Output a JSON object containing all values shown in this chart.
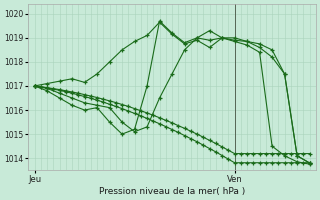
{
  "xlabel": "Pression niveau de la mer( hPa )",
  "bg_color": "#c8ead8",
  "line_color": "#1a6b1a",
  "grid_color": "#b0dcc0",
  "ylim": [
    1013.5,
    1020.4
  ],
  "xlim": [
    0,
    46
  ],
  "xticks": [
    1,
    33
  ],
  "xtick_labels": [
    "Jeu",
    "Ven"
  ],
  "yticks": [
    1014,
    1015,
    1016,
    1017,
    1018,
    1019,
    1020
  ],
  "vline_x": 33,
  "series": [
    {
      "x": [
        1,
        2,
        3,
        4,
        5,
        6,
        7,
        8,
        9,
        10,
        11,
        12,
        13,
        14,
        15,
        16,
        17,
        18,
        19,
        20,
        21,
        22,
        23,
        24,
        25,
        26,
        27,
        28,
        29,
        30,
        31,
        32,
        33,
        34,
        35,
        36,
        37,
        38,
        39,
        40,
        41,
        42,
        43,
        44,
        45
      ],
      "y": [
        1017.0,
        1016.96,
        1016.92,
        1016.87,
        1016.82,
        1016.76,
        1016.7,
        1016.63,
        1016.56,
        1016.49,
        1016.41,
        1016.33,
        1016.24,
        1016.15,
        1016.06,
        1015.96,
        1015.86,
        1015.76,
        1015.65,
        1015.54,
        1015.43,
        1015.31,
        1015.19,
        1015.07,
        1014.94,
        1014.81,
        1014.68,
        1014.54,
        1014.4,
        1014.26,
        1014.11,
        1013.96,
        1013.81,
        1013.81,
        1013.81,
        1013.81,
        1013.81,
        1013.81,
        1013.81,
        1013.81,
        1013.81,
        1013.81,
        1013.81,
        1013.81,
        1013.81
      ]
    },
    {
      "x": [
        1,
        2,
        3,
        4,
        5,
        6,
        7,
        8,
        9,
        10,
        11,
        12,
        13,
        14,
        15,
        16,
        17,
        18,
        19,
        20,
        21,
        22,
        23,
        24,
        25,
        26,
        27,
        28,
        29,
        30,
        31,
        32,
        33,
        34,
        35,
        36,
        37,
        38,
        39,
        40,
        41,
        42,
        43,
        44,
        45
      ],
      "y": [
        1017.0,
        1016.97,
        1016.93,
        1016.89,
        1016.85,
        1016.8,
        1016.75,
        1016.7,
        1016.64,
        1016.58,
        1016.52,
        1016.45,
        1016.38,
        1016.31,
        1016.23,
        1016.15,
        1016.06,
        1015.97,
        1015.88,
        1015.78,
        1015.68,
        1015.57,
        1015.47,
        1015.35,
        1015.24,
        1015.12,
        1015.0,
        1014.87,
        1014.74,
        1014.61,
        1014.47,
        1014.33,
        1014.19,
        1014.19,
        1014.19,
        1014.19,
        1014.19,
        1014.19,
        1014.19,
        1014.19,
        1014.19,
        1014.19,
        1014.19,
        1014.19,
        1014.19
      ]
    },
    {
      "x": [
        1,
        3,
        5,
        7,
        9,
        11,
        13,
        15,
        17,
        19,
        21,
        23,
        25,
        27,
        29,
        31,
        33,
        35,
        37,
        39,
        41,
        43,
        45
      ],
      "y": [
        1017.0,
        1016.9,
        1016.7,
        1016.5,
        1016.3,
        1016.2,
        1016.1,
        1015.5,
        1015.1,
        1015.3,
        1016.5,
        1017.5,
        1018.5,
        1019.0,
        1019.3,
        1019.0,
        1018.9,
        1018.85,
        1018.6,
        1018.2,
        1017.5,
        1014.1,
        1013.8
      ]
    },
    {
      "x": [
        1,
        3,
        5,
        7,
        9,
        11,
        13,
        15,
        17,
        19,
        21,
        23,
        25,
        27,
        29,
        31,
        33,
        35,
        37,
        39,
        41,
        43,
        45
      ],
      "y": [
        1017.0,
        1016.8,
        1016.5,
        1016.2,
        1016.0,
        1016.1,
        1015.5,
        1015.0,
        1015.2,
        1017.0,
        1019.7,
        1019.2,
        1018.8,
        1019.0,
        1018.9,
        1019.0,
        1019.0,
        1018.85,
        1018.75,
        1018.5,
        1017.5,
        1014.1,
        1013.8
      ]
    },
    {
      "x": [
        1,
        3,
        5,
        7,
        9,
        11,
        13,
        15,
        17,
        19,
        21,
        23,
        25,
        27,
        29,
        31,
        33,
        35,
        37,
        39,
        41,
        43,
        45
      ],
      "y": [
        1017.0,
        1017.1,
        1017.2,
        1017.3,
        1017.15,
        1017.5,
        1018.0,
        1018.5,
        1018.85,
        1019.1,
        1019.65,
        1019.15,
        1018.75,
        1018.9,
        1018.6,
        1019.0,
        1018.85,
        1018.7,
        1018.4,
        1014.5,
        1014.1,
        1013.85,
        1013.75
      ]
    }
  ]
}
